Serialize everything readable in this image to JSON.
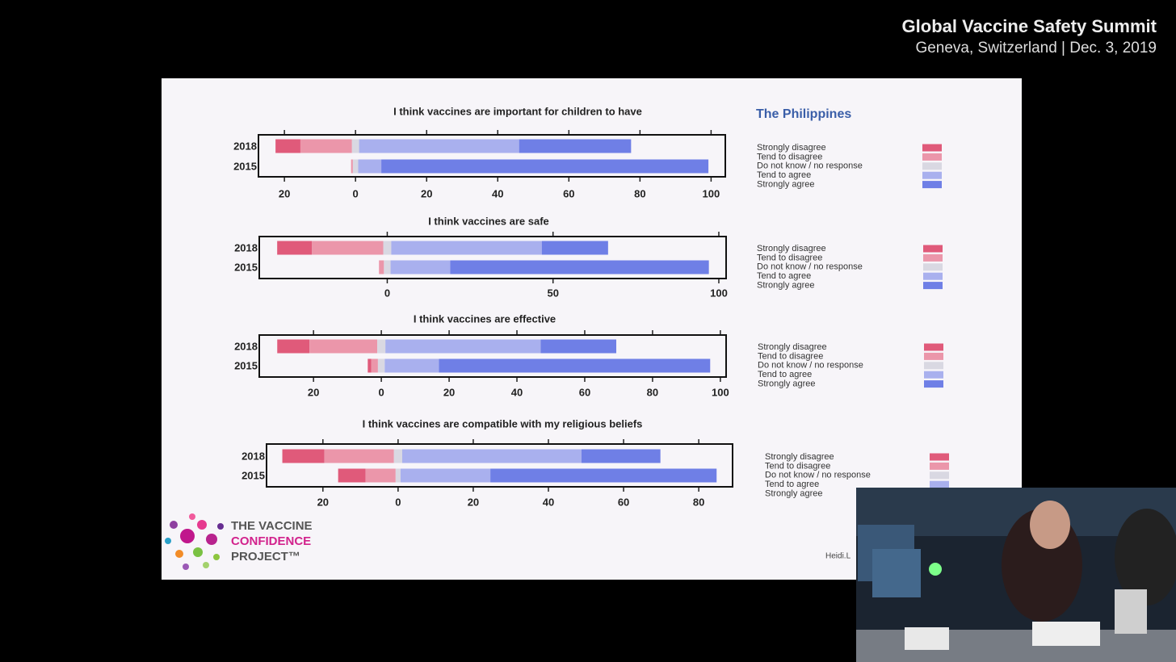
{
  "header": {
    "title": "Global Vaccine Safety Summit",
    "subtitle": "Geneva, Switzerland | Dec. 3, 2019"
  },
  "country": "The Philippines",
  "logo": {
    "line1": "THE VACCINE",
    "line2": "CONFIDENCE",
    "line3": "PROJECT™"
  },
  "credit": "Heidi.L",
  "chart_data": [
    {
      "type": "diverging_bar",
      "title": "I think vaccines are important for children to have",
      "categories": [
        "2018",
        "2015"
      ],
      "series": [
        {
          "name": "Strongly disagree",
          "color": "#e05a7a",
          "values": [
            7,
            0
          ]
        },
        {
          "name": "Tend to disagree",
          "color": "#eb96aa",
          "values": [
            14.5,
            0.5
          ]
        },
        {
          "name": "Do not know / no response",
          "color": "#d9d8e2",
          "values": [
            2,
            1.5
          ]
        },
        {
          "name": "Tend to agree",
          "color": "#a9b0ee",
          "values": [
            45,
            6.5
          ]
        },
        {
          "name": "Strongly agree",
          "color": "#6f7fe6",
          "values": [
            31.5,
            92
          ]
        }
      ],
      "xlim": [
        -27.3,
        104
      ],
      "xticks": [
        {
          "value": -20,
          "label": "20"
        },
        0,
        20,
        40,
        60,
        80,
        100
      ]
    },
    {
      "type": "diverging_bar",
      "title": "I think vaccines are safe",
      "categories": [
        "2018",
        "2015"
      ],
      "series": [
        {
          "name": "Strongly disagree",
          "color": "#e05a7a",
          "values": [
            10.5,
            0
          ]
        },
        {
          "name": "Tend to disagree",
          "color": "#eb96aa",
          "values": [
            21.5,
            1.5
          ]
        },
        {
          "name": "Do not know / no response",
          "color": "#d9d8e2",
          "values": [
            2.4,
            2
          ]
        },
        {
          "name": "Tend to agree",
          "color": "#a9b0ee",
          "values": [
            45.4,
            18
          ]
        },
        {
          "name": "Strongly agree",
          "color": "#6f7fe6",
          "values": [
            20,
            78
          ]
        }
      ],
      "xlim": [
        -38.6,
        102.2
      ],
      "xticks": [
        0,
        50,
        100
      ]
    },
    {
      "type": "diverging_bar",
      "title": "I think vaccines are effective",
      "categories": [
        "2018",
        "2015"
      ],
      "series": [
        {
          "name": "Strongly disagree",
          "color": "#e05a7a",
          "values": [
            9.5,
            1
          ]
        },
        {
          "name": "Tend to disagree",
          "color": "#eb96aa",
          "values": [
            20,
            2
          ]
        },
        {
          "name": "Do not know / no response",
          "color": "#d9d8e2",
          "values": [
            2.4,
            2
          ]
        },
        {
          "name": "Tend to agree",
          "color": "#a9b0ee",
          "values": [
            45.8,
            16
          ]
        },
        {
          "name": "Strongly agree",
          "color": "#6f7fe6",
          "values": [
            22.3,
            80
          ]
        }
      ],
      "xlim": [
        -36,
        101.7
      ],
      "xticks": [
        {
          "value": -20,
          "label": "20"
        },
        0,
        20,
        40,
        60,
        80,
        100
      ]
    },
    {
      "type": "diverging_bar",
      "title": "I think vaccines are compatible with my religious beliefs",
      "categories": [
        "2018",
        "2015"
      ],
      "series": [
        {
          "name": "Strongly disagree",
          "color": "#e05a7a",
          "values": [
            11.2,
            7.3
          ]
        },
        {
          "name": "Tend to disagree",
          "color": "#eb96aa",
          "values": [
            18.5,
            8
          ]
        },
        {
          "name": "Do not know / no response",
          "color": "#d9d8e2",
          "values": [
            2.2,
            1.3
          ]
        },
        {
          "name": "Tend to agree",
          "color": "#a9b0ee",
          "values": [
            47.7,
            23.9
          ]
        },
        {
          "name": "Strongly agree",
          "color": "#6f7fe6",
          "values": [
            21,
            60.2
          ]
        }
      ],
      "xlim": [
        -35,
        89
      ],
      "xticks": [
        {
          "value": -20,
          "label": "20"
        },
        0,
        20,
        40,
        60,
        80
      ]
    }
  ]
}
